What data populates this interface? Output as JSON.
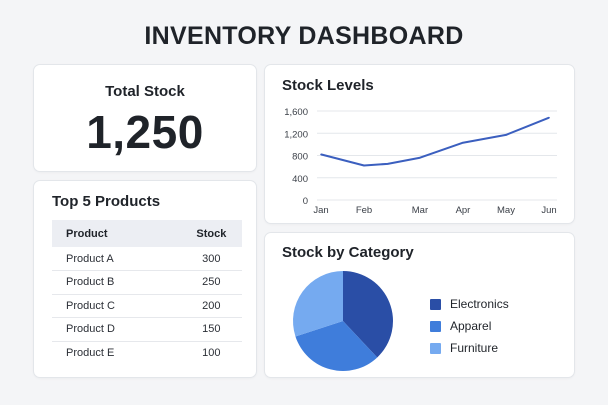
{
  "dashboard_title": "INVENTORY DASHBOARD",
  "total_stock": {
    "label": "Total Stock",
    "value": "1,250"
  },
  "top_products": {
    "title": "Top 5 Products",
    "columns": [
      "Product",
      "Stock"
    ],
    "rows": [
      [
        "Product A",
        "300"
      ],
      [
        "Product B",
        "250"
      ],
      [
        "Product C",
        "200"
      ],
      [
        "Product D",
        "150"
      ],
      [
        "Product E",
        "100"
      ]
    ]
  },
  "chart_data": [
    {
      "type": "line",
      "title": "Stock Levels",
      "x": [
        "Jan",
        "Feb",
        "Mar",
        "Apr",
        "May",
        "Jun"
      ],
      "x_positions": [
        0,
        1,
        2.3,
        3.3,
        4.3,
        5.3
      ],
      "y_ticks": [
        0,
        400,
        800,
        1200,
        1600
      ],
      "y_tick_labels": [
        "0",
        "400",
        "800",
        "1,200",
        "1,600"
      ],
      "ylim": [
        0,
        1600
      ],
      "series": [
        {
          "x": [
            0,
            1,
            1.55,
            2.3,
            3.3,
            4.3,
            5.3
          ],
          "values": [
            820,
            620,
            650,
            760,
            1030,
            1170,
            1480
          ],
          "color": "#3b5fbf"
        }
      ],
      "grid": true
    },
    {
      "type": "pie",
      "title": "Stock by Category",
      "labels": [
        "Electronics",
        "Apparel",
        "Furniture"
      ],
      "values": [
        38,
        32,
        30
      ],
      "colors": [
        "#2a4ea6",
        "#3f7ddb",
        "#75aaf0"
      ],
      "legend": "right"
    }
  ]
}
